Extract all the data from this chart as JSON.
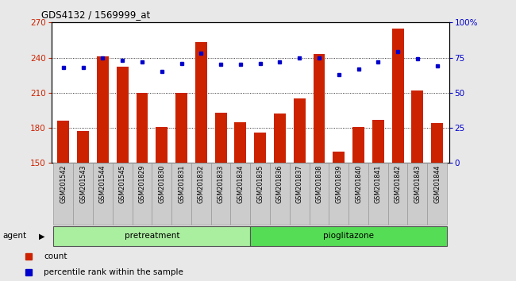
{
  "title": "GDS4132 / 1569999_at",
  "samples": [
    "GSM201542",
    "GSM201543",
    "GSM201544",
    "GSM201545",
    "GSM201829",
    "GSM201830",
    "GSM201831",
    "GSM201832",
    "GSM201833",
    "GSM201834",
    "GSM201835",
    "GSM201836",
    "GSM201837",
    "GSM201838",
    "GSM201839",
    "GSM201840",
    "GSM201841",
    "GSM201842",
    "GSM201843",
    "GSM201844"
  ],
  "counts": [
    186,
    177,
    241,
    232,
    210,
    181,
    210,
    253,
    193,
    185,
    176,
    192,
    205,
    243,
    160,
    181,
    187,
    265,
    212,
    184
  ],
  "percentile_ranks": [
    68,
    68,
    75,
    73,
    72,
    65,
    71,
    78,
    70,
    70,
    71,
    72,
    75,
    75,
    63,
    67,
    72,
    79,
    74,
    69
  ],
  "n_pretreatment": 10,
  "ylim_left": [
    150,
    270
  ],
  "ylim_right": [
    0,
    100
  ],
  "yticks_left": [
    150,
    180,
    210,
    240,
    270
  ],
  "yticks_right": [
    0,
    25,
    50,
    75,
    100
  ],
  "bar_color": "#cc2200",
  "dot_color": "#0000cc",
  "pretreatment_color": "#aaeea0",
  "pioglitazone_color": "#55dd55",
  "background_color": "#e8e8e8",
  "plot_bg_color": "#ffffff",
  "sample_label_bg": "#cccccc",
  "sample_label_edge": "#999999"
}
